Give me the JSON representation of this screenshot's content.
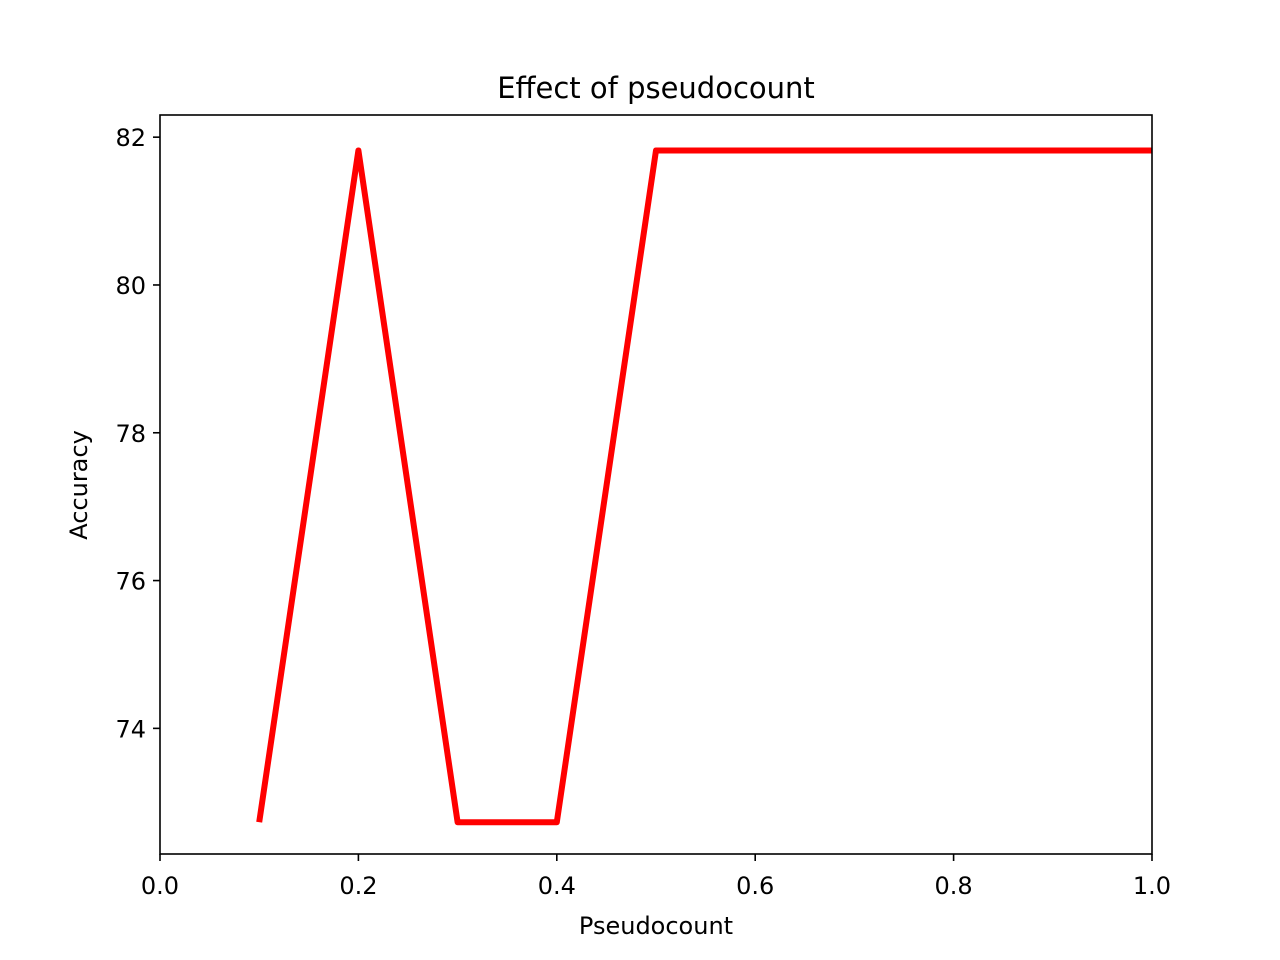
{
  "chart_data": {
    "type": "line",
    "title": "Effect of pseudocount",
    "xlabel": "Pseudocount",
    "ylabel": "Accuracy",
    "xlim": [
      0.0,
      1.0
    ],
    "ylim": [
      72.3,
      82.3
    ],
    "xticks": [
      0.0,
      0.2,
      0.4,
      0.6,
      0.8,
      1.0
    ],
    "xtick_labels": [
      "0.0",
      "0.2",
      "0.4",
      "0.6",
      "0.8",
      "1.0"
    ],
    "yticks": [
      74,
      76,
      78,
      80,
      82
    ],
    "ytick_labels": [
      "74",
      "76",
      "78",
      "80",
      "82"
    ],
    "grid": false,
    "legend": "none",
    "series": [
      {
        "color": "#ff0000",
        "x": [
          0.1,
          0.2,
          0.3,
          0.4,
          0.5,
          0.6,
          0.7,
          0.8,
          0.9,
          1.0
        ],
        "y": [
          72.73,
          81.82,
          72.73,
          72.73,
          81.82,
          81.82,
          81.82,
          81.82,
          81.82,
          81.82
        ]
      }
    ]
  }
}
